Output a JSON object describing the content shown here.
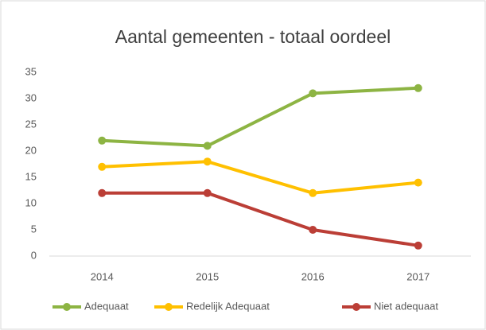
{
  "chart_data": {
    "type": "line",
    "title": "Aantal gemeenten - totaal oordeel",
    "categories": [
      "2014",
      "2015",
      "2016",
      "2017"
    ],
    "series": [
      {
        "name": "Adequaat",
        "color": "#8db443",
        "values": [
          22,
          21,
          31,
          32
        ]
      },
      {
        "name": "Redelijk Adequaat",
        "color": "#ffc000",
        "values": [
          17,
          18,
          12,
          14
        ]
      },
      {
        "name": "Niet adequaat",
        "color": "#bb3e36",
        "values": [
          12,
          12,
          5,
          2
        ]
      }
    ],
    "ylim": [
      0,
      35
    ],
    "yticks": [
      0,
      5,
      10,
      15,
      20,
      25,
      30,
      35
    ],
    "grid": false,
    "legend": "bottom"
  }
}
